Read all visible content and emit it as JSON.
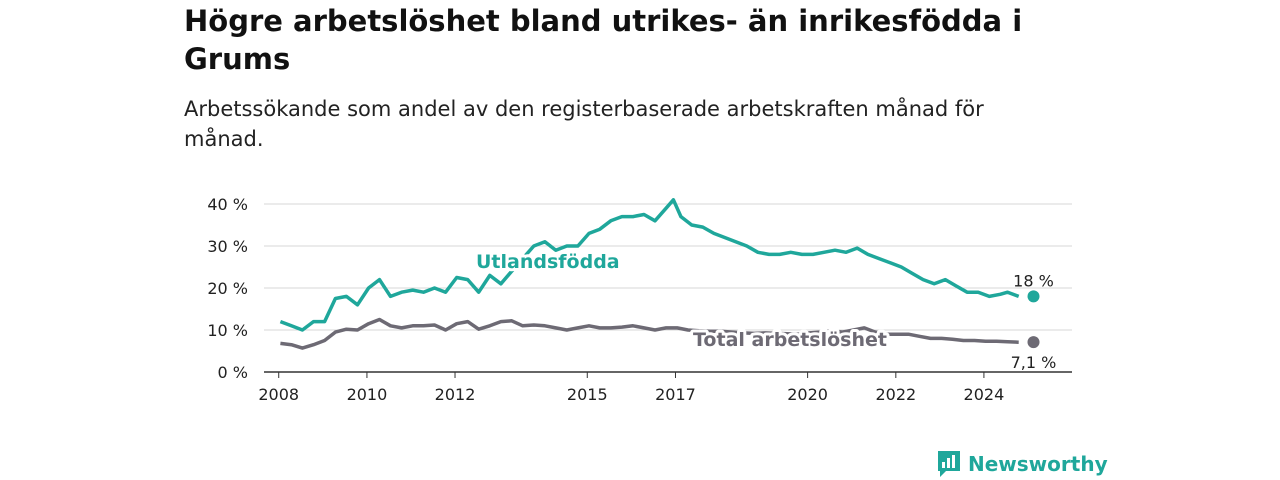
{
  "header": {
    "title": "Högre arbetslöshet bland utrikes- än inrikesfödda i Grums",
    "subtitle": "Arbetssökande som andel av den registerbaserade arbetskraften månad för månad."
  },
  "brand": {
    "label": "Newsworthy",
    "icon": "newsworthy-logo-icon"
  },
  "chart_data": {
    "type": "line",
    "xlim": [
      "2007-09-01",
      "2025-12-31"
    ],
    "ylim": [
      0,
      45
    ],
    "y_ticks": [
      0,
      10,
      20,
      30,
      40
    ],
    "y_tick_labels": [
      "0 %",
      "10 %",
      "20 %",
      "30 %",
      "40 %"
    ],
    "x_ticks": [
      "2008",
      "2010",
      "2012",
      "2015",
      "2017",
      "2020",
      "2022",
      "2024"
    ],
    "grid": true,
    "legend": "inline labels",
    "colors": {
      "foreign": "#1fa79b",
      "total": "#6d6a74",
      "grid": "#d7d7d7",
      "axis": "#333333"
    },
    "series": [
      {
        "name": "Utlandsfödda",
        "end_label": "18 %",
        "points": [
          [
            "2008-01",
            12
          ],
          [
            "2008-04",
            11
          ],
          [
            "2008-07",
            10
          ],
          [
            "2008-10",
            12
          ],
          [
            "2009-01",
            12
          ],
          [
            "2009-04",
            17.5
          ],
          [
            "2009-07",
            18
          ],
          [
            "2009-10",
            16
          ],
          [
            "2010-01",
            20
          ],
          [
            "2010-04",
            22
          ],
          [
            "2010-07",
            18
          ],
          [
            "2010-10",
            19
          ],
          [
            "2011-01",
            19.5
          ],
          [
            "2011-04",
            19
          ],
          [
            "2011-07",
            20
          ],
          [
            "2011-10",
            19
          ],
          [
            "2012-01",
            22.5
          ],
          [
            "2012-04",
            22
          ],
          [
            "2012-07",
            19
          ],
          [
            "2012-10",
            23
          ],
          [
            "2013-01",
            21
          ],
          [
            "2013-04",
            24
          ],
          [
            "2013-07",
            27
          ],
          [
            "2013-10",
            30
          ],
          [
            "2014-01",
            31
          ],
          [
            "2014-04",
            29
          ],
          [
            "2014-07",
            30
          ],
          [
            "2014-10",
            30
          ],
          [
            "2015-01",
            33
          ],
          [
            "2015-04",
            34
          ],
          [
            "2015-07",
            36
          ],
          [
            "2015-10",
            37
          ],
          [
            "2016-01",
            37
          ],
          [
            "2016-04",
            37.5
          ],
          [
            "2016-07",
            36
          ],
          [
            "2016-10",
            39
          ],
          [
            "2016-12",
            41
          ],
          [
            "2017-02",
            37
          ],
          [
            "2017-05",
            35
          ],
          [
            "2017-08",
            34.5
          ],
          [
            "2017-11",
            33
          ],
          [
            "2018-02",
            32
          ],
          [
            "2018-05",
            31
          ],
          [
            "2018-08",
            30
          ],
          [
            "2018-11",
            28.5
          ],
          [
            "2019-02",
            28
          ],
          [
            "2019-05",
            28
          ],
          [
            "2019-08",
            28.5
          ],
          [
            "2019-11",
            28
          ],
          [
            "2020-02",
            28
          ],
          [
            "2020-05",
            28.5
          ],
          [
            "2020-08",
            29
          ],
          [
            "2020-11",
            28.5
          ],
          [
            "2021-02",
            29.5
          ],
          [
            "2021-05",
            28
          ],
          [
            "2021-08",
            27
          ],
          [
            "2021-11",
            26
          ],
          [
            "2022-02",
            25
          ],
          [
            "2022-05",
            23.5
          ],
          [
            "2022-08",
            22
          ],
          [
            "2022-11",
            21
          ],
          [
            "2023-02",
            22
          ],
          [
            "2023-05",
            20.5
          ],
          [
            "2023-08",
            19
          ],
          [
            "2023-11",
            19
          ],
          [
            "2024-02",
            18
          ],
          [
            "2024-05",
            18.5
          ],
          [
            "2024-07",
            19
          ],
          [
            "2024-10",
            18
          ]
        ]
      },
      {
        "name": "Total arbetslöshet",
        "end_label": "7,1 %",
        "points": [
          [
            "2008-01",
            6.8
          ],
          [
            "2008-04",
            6.5
          ],
          [
            "2008-07",
            5.7
          ],
          [
            "2008-10",
            6.5
          ],
          [
            "2009-01",
            7.5
          ],
          [
            "2009-04",
            9.5
          ],
          [
            "2009-07",
            10.2
          ],
          [
            "2009-10",
            10
          ],
          [
            "2010-01",
            11.5
          ],
          [
            "2010-04",
            12.5
          ],
          [
            "2010-07",
            11
          ],
          [
            "2010-10",
            10.5
          ],
          [
            "2011-01",
            11
          ],
          [
            "2011-04",
            11
          ],
          [
            "2011-07",
            11.2
          ],
          [
            "2011-10",
            10
          ],
          [
            "2012-01",
            11.5
          ],
          [
            "2012-04",
            12
          ],
          [
            "2012-07",
            10.2
          ],
          [
            "2012-10",
            11
          ],
          [
            "2013-01",
            12
          ],
          [
            "2013-04",
            12.2
          ],
          [
            "2013-07",
            11
          ],
          [
            "2013-10",
            11.2
          ],
          [
            "2014-01",
            11
          ],
          [
            "2014-04",
            10.5
          ],
          [
            "2014-07",
            10
          ],
          [
            "2014-10",
            10.5
          ],
          [
            "2015-01",
            11
          ],
          [
            "2015-04",
            10.5
          ],
          [
            "2015-07",
            10.5
          ],
          [
            "2015-10",
            10.7
          ],
          [
            "2016-01",
            11
          ],
          [
            "2016-04",
            10.5
          ],
          [
            "2016-07",
            10
          ],
          [
            "2016-10",
            10.5
          ],
          [
            "2017-01",
            10.5
          ],
          [
            "2017-04",
            10
          ],
          [
            "2017-07",
            9.8
          ],
          [
            "2017-10",
            9.7
          ],
          [
            "2018-01",
            9.7
          ],
          [
            "2018-04",
            9.5
          ],
          [
            "2018-07",
            9.3
          ],
          [
            "2018-10",
            9.2
          ],
          [
            "2019-01",
            9.3
          ],
          [
            "2019-04",
            9.2
          ],
          [
            "2019-07",
            9.1
          ],
          [
            "2019-10",
            9
          ],
          [
            "2020-01",
            9.3
          ],
          [
            "2020-04",
            9.5
          ],
          [
            "2020-07",
            9.8
          ],
          [
            "2020-10",
            9.5
          ],
          [
            "2021-01",
            10
          ],
          [
            "2021-04",
            10.5
          ],
          [
            "2021-07",
            9.5
          ],
          [
            "2021-10",
            9
          ],
          [
            "2022-01",
            9
          ],
          [
            "2022-04",
            9
          ],
          [
            "2022-07",
            8.5
          ],
          [
            "2022-10",
            8
          ],
          [
            "2023-01",
            8
          ],
          [
            "2023-04",
            7.8
          ],
          [
            "2023-07",
            7.5
          ],
          [
            "2023-10",
            7.5
          ],
          [
            "2024-01",
            7.3
          ],
          [
            "2024-04",
            7.3
          ],
          [
            "2024-07",
            7.2
          ],
          [
            "2024-10",
            7.1
          ]
        ]
      }
    ]
  }
}
